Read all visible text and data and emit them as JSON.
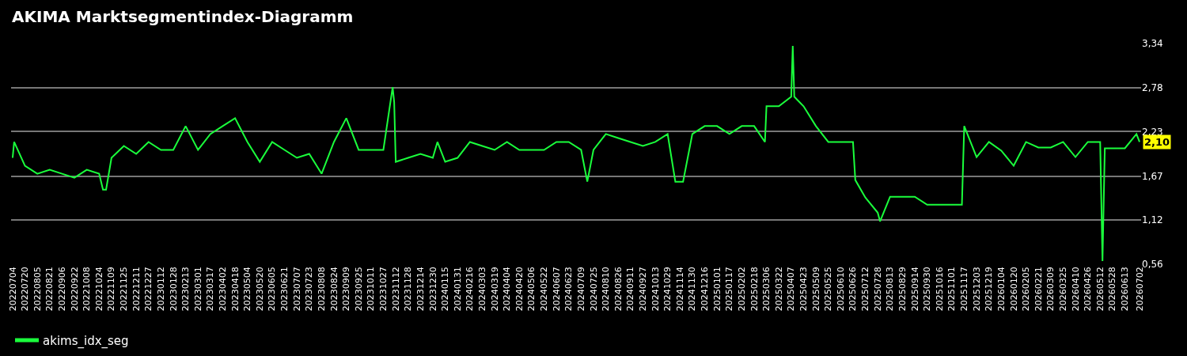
{
  "chart_data": {
    "type": "line",
    "title": "AKIMA Marktsegmentindex-Diagramm",
    "x": [
      "2022-07-04",
      "2022-07-06",
      "2022-07-20",
      "2022-08-05",
      "2022-08-21",
      "2022-09-06",
      "2022-09-22",
      "2022-10-08",
      "2022-10-24",
      "2022-10-29",
      "2022-11-02",
      "2022-11-09",
      "2022-11-25",
      "2022-12-11",
      "2022-12-27",
      "2023-01-12",
      "2023-01-28",
      "2023-02-13",
      "2023-03-01",
      "2023-03-17",
      "2023-04-02",
      "2023-04-18",
      "2023-05-04",
      "2023-05-20",
      "2023-06-05",
      "2023-06-21",
      "2023-07-07",
      "2023-07-23",
      "2023-08-08",
      "2023-08-24",
      "2023-09-09",
      "2023-09-25",
      "2023-10-11",
      "2023-10-27",
      "2023-11-08",
      "2023-11-10",
      "2023-11-12",
      "2023-11-28",
      "2023-12-14",
      "2023-12-30",
      "2024-01-05",
      "2024-01-15",
      "2024-01-31",
      "2024-02-16",
      "2024-03-03",
      "2024-03-19",
      "2024-04-04",
      "2024-04-20",
      "2024-05-06",
      "2024-05-22",
      "2024-06-07",
      "2024-06-23",
      "2024-07-09",
      "2024-07-17",
      "2024-07-25",
      "2024-08-10",
      "2024-08-26",
      "2024-09-11",
      "2024-09-27",
      "2024-10-13",
      "2024-10-29",
      "2024-11-08",
      "2024-11-18",
      "2024-11-30",
      "2024-12-16",
      "2025-01-01",
      "2025-01-17",
      "2025-02-02",
      "2025-02-18",
      "2025-03-04",
      "2025-03-06",
      "2025-03-22",
      "2025-04-07",
      "2025-04-09",
      "2025-04-11",
      "2025-04-23",
      "2025-05-09",
      "2025-05-25",
      "2025-06-10",
      "2025-06-26",
      "2025-06-29",
      "2025-07-12",
      "2025-07-28",
      "2025-07-31",
      "2025-08-13",
      "2025-08-29",
      "2025-09-14",
      "2025-09-30",
      "2025-10-16",
      "2025-11-01",
      "2025-11-14",
      "2025-11-17",
      "2025-12-03",
      "2025-12-19",
      "2026-01-04",
      "2026-01-20",
      "2026-02-05",
      "2026-02-21",
      "2026-03-09",
      "2026-03-25",
      "2026-04-10",
      "2026-04-26",
      "2026-05-12",
      "2026-05-15",
      "2026-05-18",
      "2026-05-28",
      "2026-06-13",
      "2026-06-28",
      "2026-07-02"
    ],
    "series": [
      {
        "name": "akims_idx_seg",
        "color": "#1aff3c",
        "values": [
          1.9,
          2.1,
          1.8,
          1.7,
          1.75,
          1.7,
          1.65,
          1.75,
          1.7,
          1.5,
          1.5,
          1.9,
          2.05,
          1.95,
          2.1,
          2.0,
          2.0,
          2.3,
          2.0,
          2.2,
          2.3,
          2.4,
          2.1,
          1.85,
          2.1,
          2.0,
          1.9,
          1.95,
          1.7,
          2.1,
          2.4,
          2.0,
          2.0,
          2.0,
          2.79,
          2.6,
          1.85,
          1.9,
          1.95,
          1.9,
          2.1,
          1.85,
          1.9,
          2.1,
          2.05,
          2.0,
          2.1,
          2.0,
          2.0,
          2.0,
          2.1,
          2.1,
          2.0,
          1.6,
          2.0,
          2.2,
          2.15,
          2.1,
          2.05,
          2.1,
          2.2,
          1.6,
          1.6,
          2.2,
          2.3,
          2.3,
          2.2,
          2.3,
          2.3,
          2.1,
          2.55,
          2.55,
          2.67,
          3.31,
          2.67,
          2.55,
          2.3,
          2.1,
          2.1,
          2.1,
          1.62,
          1.4,
          1.21,
          1.1,
          1.41,
          1.41,
          1.41,
          1.31,
          1.31,
          1.31,
          1.31,
          2.3,
          1.91,
          2.1,
          1.99,
          1.8,
          2.1,
          2.03,
          2.03,
          2.1,
          1.91,
          2.1,
          2.1,
          0.6,
          2.02,
          2.02,
          2.02,
          2.2,
          2.1
        ]
      }
    ],
    "xlim": [
      "2022-07-02",
      "2026-07-04"
    ],
    "xticks": [
      {
        "value": "2022-07-04",
        "label": "20220704"
      },
      {
        "value": "2022-07-20",
        "label": "20220720"
      },
      {
        "value": "2022-08-05",
        "label": "20220805"
      },
      {
        "value": "2022-08-21",
        "label": "20220821"
      },
      {
        "value": "2022-09-06",
        "label": "20220906"
      },
      {
        "value": "2022-09-22",
        "label": "20220922"
      },
      {
        "value": "2022-10-08",
        "label": "20221008"
      },
      {
        "value": "2022-10-24",
        "label": "20221024"
      },
      {
        "value": "2022-11-09",
        "label": "20221109"
      },
      {
        "value": "2022-11-25",
        "label": "20221125"
      },
      {
        "value": "2022-12-11",
        "label": "20221211"
      },
      {
        "value": "2022-12-27",
        "label": "20221227"
      },
      {
        "value": "2023-01-12",
        "label": "20230112"
      },
      {
        "value": "2023-01-28",
        "label": "20230128"
      },
      {
        "value": "2023-02-13",
        "label": "20230213"
      },
      {
        "value": "2023-03-01",
        "label": "20230301"
      },
      {
        "value": "2023-03-17",
        "label": "20230317"
      },
      {
        "value": "2023-04-02",
        "label": "20230402"
      },
      {
        "value": "2023-04-18",
        "label": "20230418"
      },
      {
        "value": "2023-05-04",
        "label": "20230504"
      },
      {
        "value": "2023-05-20",
        "label": "20230520"
      },
      {
        "value": "2023-06-05",
        "label": "20230605"
      },
      {
        "value": "2023-06-21",
        "label": "20230621"
      },
      {
        "value": "2023-07-07",
        "label": "20230707"
      },
      {
        "value": "2023-07-23",
        "label": "20230723"
      },
      {
        "value": "2023-08-08",
        "label": "20230808"
      },
      {
        "value": "2023-08-24",
        "label": "20230824"
      },
      {
        "value": "2023-09-09",
        "label": "20230909"
      },
      {
        "value": "2023-09-25",
        "label": "20230925"
      },
      {
        "value": "2023-10-11",
        "label": "20231011"
      },
      {
        "value": "2023-10-27",
        "label": "20231027"
      },
      {
        "value": "2023-11-12",
        "label": "20231112"
      },
      {
        "value": "2023-11-28",
        "label": "20231128"
      },
      {
        "value": "2023-12-14",
        "label": "20231214"
      },
      {
        "value": "2023-12-30",
        "label": "20231230"
      },
      {
        "value": "2024-01-15",
        "label": "20240115"
      },
      {
        "value": "2024-01-31",
        "label": "20240131"
      },
      {
        "value": "2024-02-16",
        "label": "20240216"
      },
      {
        "value": "2024-03-03",
        "label": "20240303"
      },
      {
        "value": "2024-03-19",
        "label": "20240319"
      },
      {
        "value": "2024-04-04",
        "label": "20240404"
      },
      {
        "value": "2024-04-20",
        "label": "20240420"
      },
      {
        "value": "2024-05-06",
        "label": "20240506"
      },
      {
        "value": "2024-05-22",
        "label": "20240522"
      },
      {
        "value": "2024-06-07",
        "label": "20240607"
      },
      {
        "value": "2024-06-23",
        "label": "20240623"
      },
      {
        "value": "2024-07-09",
        "label": "20240709"
      },
      {
        "value": "2024-07-25",
        "label": "20240725"
      },
      {
        "value": "2024-08-10",
        "label": "20240810"
      },
      {
        "value": "2024-08-26",
        "label": "20240826"
      },
      {
        "value": "2024-09-11",
        "label": "20240911"
      },
      {
        "value": "2024-09-27",
        "label": "20240927"
      },
      {
        "value": "2024-10-13",
        "label": "20241013"
      },
      {
        "value": "2024-10-29",
        "label": "20241029"
      },
      {
        "value": "2024-11-14",
        "label": "20241114"
      },
      {
        "value": "2024-11-30",
        "label": "20241130"
      },
      {
        "value": "2024-12-16",
        "label": "20241216"
      },
      {
        "value": "2025-01-01",
        "label": "20250101"
      },
      {
        "value": "2025-01-17",
        "label": "20250117"
      },
      {
        "value": "2025-02-02",
        "label": "20250202"
      },
      {
        "value": "2025-02-18",
        "label": "20250218"
      },
      {
        "value": "2025-03-06",
        "label": "20250306"
      },
      {
        "value": "2025-03-22",
        "label": "20250322"
      },
      {
        "value": "2025-04-07",
        "label": "20250407"
      },
      {
        "value": "2025-04-23",
        "label": "20250423"
      },
      {
        "value": "2025-05-09",
        "label": "20250509"
      },
      {
        "value": "2025-05-25",
        "label": "20250525"
      },
      {
        "value": "2025-06-10",
        "label": "20250610"
      },
      {
        "value": "2025-06-26",
        "label": "20250626"
      },
      {
        "value": "2025-07-12",
        "label": "20250712"
      },
      {
        "value": "2025-07-28",
        "label": "20250728"
      },
      {
        "value": "2025-08-13",
        "label": "20250813"
      },
      {
        "value": "2025-08-29",
        "label": "20250829"
      },
      {
        "value": "2025-09-14",
        "label": "20250914"
      },
      {
        "value": "2025-09-30",
        "label": "20250930"
      },
      {
        "value": "2025-10-16",
        "label": "20251016"
      },
      {
        "value": "2025-11-01",
        "label": "20251101"
      },
      {
        "value": "2025-11-17",
        "label": "20251117"
      },
      {
        "value": "2025-12-03",
        "label": "20251203"
      },
      {
        "value": "2025-12-19",
        "label": "20251219"
      },
      {
        "value": "2026-01-04",
        "label": "20260104"
      },
      {
        "value": "2026-01-20",
        "label": "20260120"
      },
      {
        "value": "2026-02-05",
        "label": "20260205"
      },
      {
        "value": "2026-02-21",
        "label": "20260221"
      },
      {
        "value": "2026-03-09",
        "label": "20260309"
      },
      {
        "value": "2026-03-25",
        "label": "20260325"
      },
      {
        "value": "2026-04-10",
        "label": "20260410"
      },
      {
        "value": "2026-04-26",
        "label": "20260426"
      },
      {
        "value": "2026-05-12",
        "label": "20260512"
      },
      {
        "value": "2026-05-28",
        "label": "20260528"
      },
      {
        "value": "2026-06-13",
        "label": "20260613"
      },
      {
        "value": "2026-07-02",
        "label": "20260702"
      }
    ],
    "ylim": [
      0.56,
      3.34
    ],
    "yticks": [
      {
        "value": 0.56,
        "label": "0,56"
      },
      {
        "value": 1.12,
        "label": "1,12"
      },
      {
        "value": 1.67,
        "label": "1,67"
      },
      {
        "value": 2.23,
        "label": "2,23"
      },
      {
        "value": 2.78,
        "label": "2,78"
      },
      {
        "value": 3.34,
        "label": "3,34"
      }
    ],
    "grid": "y",
    "legend": "bottom left",
    "line_style": "solid",
    "annotations": [
      {
        "text": "2,10",
        "x": "2026-07-02",
        "y": 2.1
      }
    ]
  }
}
